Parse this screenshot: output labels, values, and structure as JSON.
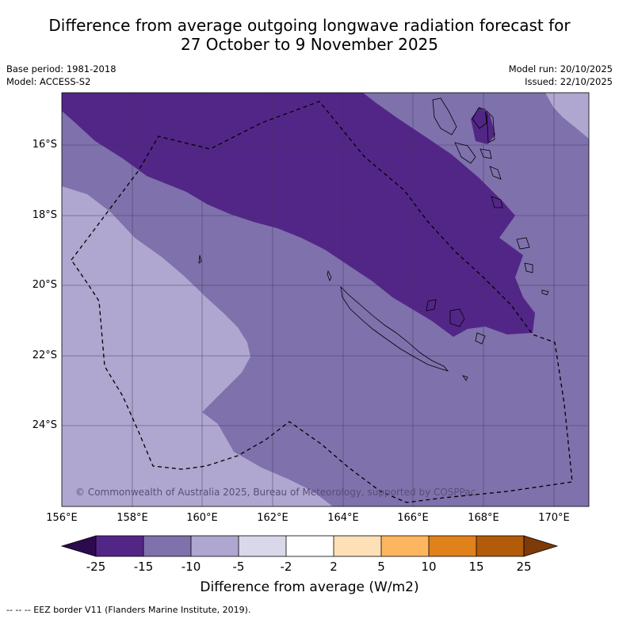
{
  "title": {
    "line1": "Difference from average outgoing longwave radiation forecast for",
    "line2": "27 October to 9 November 2025"
  },
  "info_left": {
    "base_period": "Base period: 1981-2018",
    "model": "Model: ACCESS-S2"
  },
  "info_right": {
    "model_run": "Model run: 20/10/2025",
    "issued": "Issued: 22/10/2025"
  },
  "map": {
    "lon_range": [
      156,
      171
    ],
    "lat_range": [
      -14.5,
      -26.2
    ],
    "lat_labels": [
      "16°S",
      "18°S",
      "20°S",
      "22°S",
      "24°S"
    ],
    "lon_labels": [
      "156°E",
      "158°E",
      "160°E",
      "162°E",
      "164°E",
      "166°E",
      "168°E",
      "170°E"
    ],
    "copyright": "© Commonwealth of Australia 2025, Bureau of Meteorology, supported by COSPPac",
    "colors": {
      "lt_minus15": "#522687",
      "minus15_to_minus10": "#7f71ac",
      "minus10_to_minus5": "#afa7cf"
    }
  },
  "colorbar": {
    "labels": [
      "-25",
      "-15",
      "-10",
      "-5",
      "-2",
      "2",
      "5",
      "10",
      "15",
      "25"
    ],
    "colors": [
      "#2d0a4e",
      "#522687",
      "#7f71ac",
      "#afa7cf",
      "#d8d8ea",
      "#ffffff",
      "#fde0b5",
      "#fcb65f",
      "#e0811b",
      "#b15b0b",
      "#7e3a08"
    ],
    "title": "Difference from average (W/m2)"
  },
  "footnote": "--  --  -- EEZ border V11 (Flanders Marine Institute, 2019)."
}
